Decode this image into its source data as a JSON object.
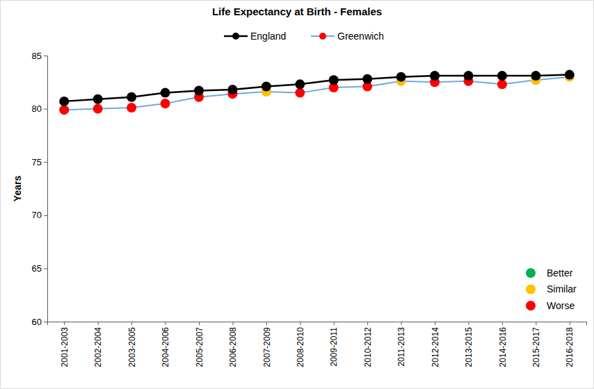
{
  "chart_data": {
    "type": "line",
    "title": "Life Expectancy at Birth - Females",
    "y_label": "Years",
    "categories": [
      "2001-2003",
      "2002-2004",
      "2003-2005",
      "2004-2006",
      "2005-2007",
      "2006-2008",
      "2007-2009",
      "2008-2010",
      "2009-2011",
      "2010-2012",
      "2011-2013",
      "2012-2014",
      "2013-2015",
      "2014-2016",
      "2015-2017",
      "2016-2018"
    ],
    "series": [
      {
        "name": "England",
        "color": "#000000",
        "marker": "circle",
        "values": [
          80.7,
          80.9,
          81.1,
          81.5,
          81.7,
          81.8,
          82.1,
          82.3,
          82.7,
          82.8,
          83.0,
          83.1,
          83.1,
          83.1,
          83.1,
          83.2
        ]
      },
      {
        "name": "Greenwich",
        "color": "#6FA8DC",
        "marker": "circle",
        "colors": [
          "#FF0000",
          "#FF0000",
          "#FF0000",
          "#FF0000",
          "#FF0000",
          "#FF0000",
          "#FFC000",
          "#FF0000",
          "#FF0000",
          "#FF0000",
          "#FFC000",
          "#FF0000",
          "#FF0000",
          "#FF0000",
          "#FFC000",
          "#FFC000"
        ],
        "values": [
          79.9,
          80.0,
          80.1,
          80.5,
          81.1,
          81.4,
          81.6,
          81.5,
          82.0,
          82.1,
          82.6,
          82.5,
          82.6,
          82.3,
          82.7,
          83.0
        ]
      }
    ],
    "annotations": [
      {
        "text": "Better",
        "color": "#00B050"
      },
      {
        "text": "Similar",
        "color": "#FFC000"
      },
      {
        "text": "Worse",
        "color": "#FF0000"
      }
    ],
    "ylim": [
      60,
      85
    ],
    "yticks": [
      60,
      65,
      70,
      75,
      80,
      85
    ],
    "grid": false,
    "legend": "top"
  }
}
